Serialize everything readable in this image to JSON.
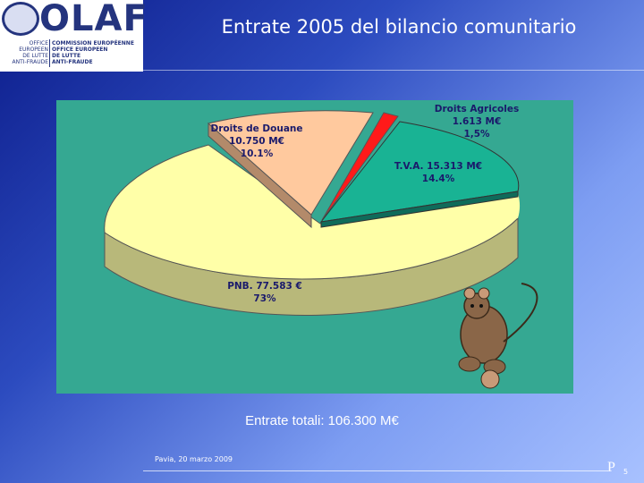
{
  "logo": {
    "title": "OLAF",
    "left_text": "OFFICE\nEUROPEEN\nDE LUTTE\nANTI-FRAUDE",
    "right_text": "COMMISSION EUROPÉENNE\nOFFICE EUROPEEN\nDE LUTTE\nANTI-FRAUDE"
  },
  "title": "Entrate 2005 del bilancio comunitario",
  "chart_data": {
    "type": "pie",
    "title": "",
    "slices": [
      {
        "name": "PNB",
        "label_line1": "PNB. 77.583 €",
        "label_line2": "73%",
        "value": 77583,
        "percent": 73,
        "color": "#ffffa8"
      },
      {
        "name": "Droits de Douane",
        "label_line0": "Droits de Douane",
        "label_line1": "10.750 M€",
        "label_line2": "10.1%",
        "value": 10750,
        "percent": 10.1,
        "color": "#ffc99e"
      },
      {
        "name": "Droits Agricoles",
        "label_line0": "Droits Agricoles",
        "label_line1": "1.613 M€",
        "label_line2": "1,5%",
        "value": 1613,
        "percent": 1.5,
        "color": "#ff1a1a"
      },
      {
        "name": "T.V.A.",
        "label_line1": "T.V.A. 15.313 M€",
        "label_line2": "14.4%",
        "value": 15313,
        "percent": 14.4,
        "color": "#19b394"
      }
    ],
    "style": "3d-exploded",
    "background": "#35a892"
  },
  "caption": "Entrate totali: 106.300 M€",
  "footer": {
    "date": "Pavia, 20 marzo 2009",
    "page_letter": "P",
    "page_number": "5"
  }
}
